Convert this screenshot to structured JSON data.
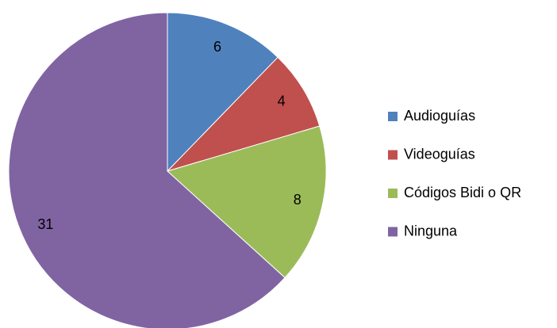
{
  "chart_data": {
    "type": "pie",
    "categories": [
      "Audioguías",
      "Videoguías",
      "Códigos Bidi o QR",
      "Ninguna"
    ],
    "values": [
      6,
      4,
      8,
      31
    ],
    "colors": [
      "#4f81bd",
      "#c0504d",
      "#9bbb59",
      "#8064a2"
    ],
    "legend": "right"
  }
}
